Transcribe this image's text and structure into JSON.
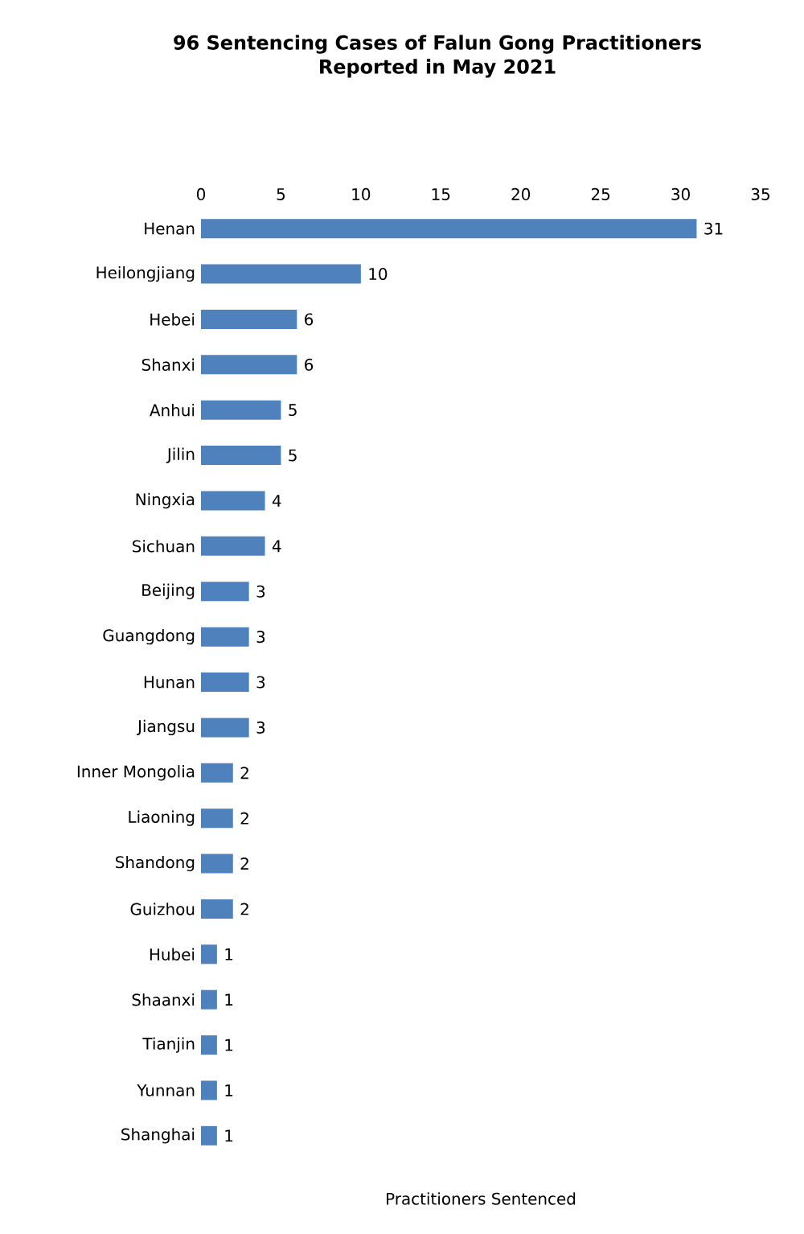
{
  "chart_data": {
    "type": "bar",
    "orientation": "horizontal",
    "title": "96 Sentencing Cases of Falun Gong Practitioners\nReported in May 2021",
    "xlabel": "Practitioners Sentenced",
    "categories": [
      "Henan",
      "Heilongjiang",
      "Hebei",
      "Shanxi",
      "Anhui",
      "Jilin",
      "Ningxia",
      "Sichuan",
      "Beijing",
      "Guangdong",
      "Hunan",
      "Jiangsu",
      "Inner Mongolia",
      "Liaoning",
      "Shandong",
      "Guizhou",
      "Hubei",
      "Shaanxi",
      "Tianjin",
      "Yunnan",
      "Shanghai"
    ],
    "values": [
      31,
      10,
      6,
      6,
      5,
      5,
      4,
      4,
      3,
      3,
      3,
      3,
      2,
      2,
      2,
      2,
      1,
      1,
      1,
      1,
      1
    ],
    "color": "#4f81bd",
    "xlim": [
      0,
      35
    ],
    "xticks": [
      0,
      5,
      10,
      15,
      20,
      25,
      30,
      35
    ],
    "data_labels": true
  }
}
